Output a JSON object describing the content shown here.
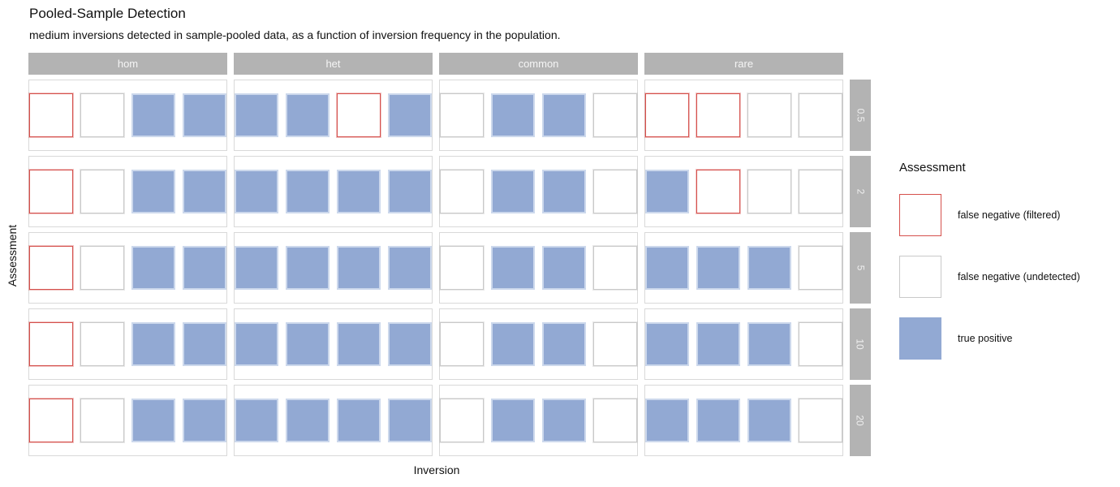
{
  "title": "Pooled-Sample Detection",
  "subtitle": "medium inversions detected in sample-pooled data, as a function of inversion frequency in the population.",
  "x_axis_label": "Inversion",
  "y_axis_label": "Assessment",
  "legend": {
    "title": "Assessment",
    "entries": [
      {
        "type": "filtered",
        "label": "false negative (filtered)"
      },
      {
        "type": "undetected",
        "label": "false negative (undetected)"
      },
      {
        "type": "tp",
        "label": "true positive"
      }
    ]
  },
  "colors": {
    "true_positive_fill": "#92a9d3",
    "filtered_border": "#d5504c",
    "undetected_border": "#c9c9c9",
    "strip_background": "#b3b3b3",
    "strip_text": "#f5f5f5",
    "panel_border": "#d9d9d9"
  },
  "chart_data": {
    "type": "heatmap",
    "title": "Pooled-Sample Detection",
    "subtitle": "medium inversions detected in sample-pooled data, as a function of inversion frequency in the population.",
    "xlabel": "Inversion",
    "ylabel": "Assessment",
    "legend_position": "right",
    "facet_columns": [
      "hom",
      "het",
      "common",
      "rare"
    ],
    "facet_rows": [
      "0.5",
      "2",
      "5",
      "10",
      "20"
    ],
    "states": {
      "filtered": "false negative (filtered)",
      "undetected": "false negative (undetected)",
      "tp": "true positive"
    },
    "cell_states": [
      [
        [
          "filtered",
          "undetected",
          "tp",
          "tp"
        ],
        [
          "tp",
          "tp",
          "filtered",
          "tp"
        ],
        [
          "undetected",
          "tp",
          "tp",
          "undetected"
        ],
        [
          "filtered",
          "filtered",
          "undetected",
          "undetected"
        ]
      ],
      [
        [
          "filtered",
          "undetected",
          "tp",
          "tp"
        ],
        [
          "tp",
          "tp",
          "tp",
          "tp"
        ],
        [
          "undetected",
          "tp",
          "tp",
          "undetected"
        ],
        [
          "tp",
          "filtered",
          "undetected",
          "undetected"
        ]
      ],
      [
        [
          "filtered",
          "undetected",
          "tp",
          "tp"
        ],
        [
          "tp",
          "tp",
          "tp",
          "tp"
        ],
        [
          "undetected",
          "tp",
          "tp",
          "undetected"
        ],
        [
          "tp",
          "tp",
          "tp",
          "undetected"
        ]
      ],
      [
        [
          "filtered",
          "undetected",
          "tp",
          "tp"
        ],
        [
          "tp",
          "tp",
          "tp",
          "tp"
        ],
        [
          "undetected",
          "tp",
          "tp",
          "undetected"
        ],
        [
          "tp",
          "tp",
          "tp",
          "undetected"
        ]
      ],
      [
        [
          "filtered",
          "undetected",
          "tp",
          "tp"
        ],
        [
          "tp",
          "tp",
          "tp",
          "tp"
        ],
        [
          "undetected",
          "tp",
          "tp",
          "undetected"
        ],
        [
          "tp",
          "tp",
          "tp",
          "undetected"
        ]
      ]
    ]
  }
}
